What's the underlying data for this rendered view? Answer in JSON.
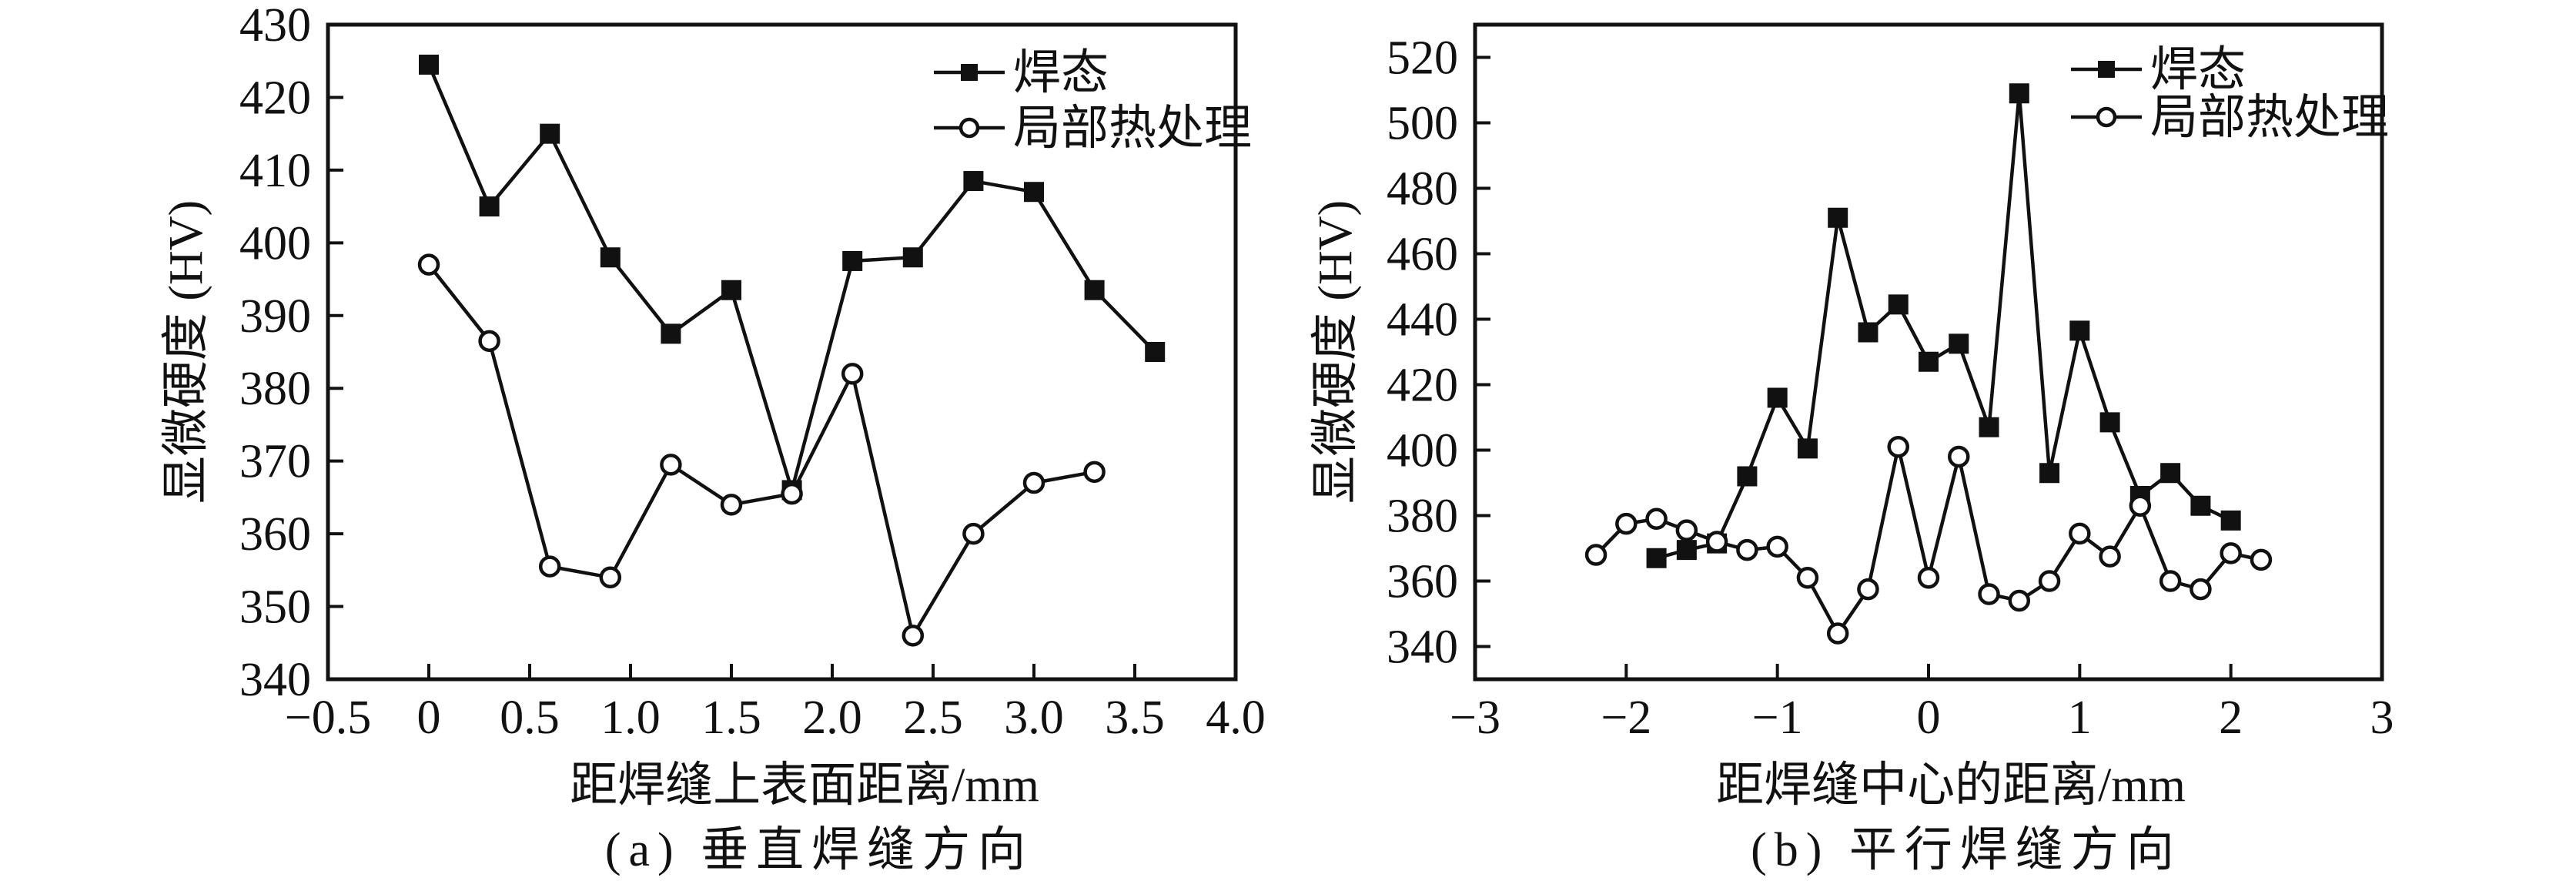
{
  "figure": {
    "background": "#ffffff",
    "ink_color": "#111111",
    "description_labels": {
      "panel_a_caption": "(a) 垂直焊缝方向",
      "panel_b_caption": "(b) 平行焊缝方向"
    }
  },
  "chart_data": [
    {
      "type": "line",
      "panel": "a",
      "title": "(a) 垂直焊缝方向",
      "xlabel": "距焊缝上表面距离/mm",
      "ylabel": "显微硬度 (HV)",
      "xlim": [
        -0.5,
        4.0
      ],
      "ylim": [
        340,
        430
      ],
      "grid": false,
      "legend_position": "top-right-inside",
      "xticks": [
        -0.5,
        0,
        0.5,
        1.0,
        1.5,
        2.0,
        2.5,
        3.0,
        3.5,
        4.0
      ],
      "xtick_labels": [
        "−0.5",
        "0",
        "0.5",
        "1.0",
        "1.5",
        "2.0",
        "2.5",
        "3.0",
        "3.5",
        "4.0"
      ],
      "yticks": [
        340,
        350,
        360,
        370,
        380,
        390,
        400,
        410,
        420,
        430
      ],
      "ytick_labels": [
        "340",
        "350",
        "360",
        "370",
        "380",
        "390",
        "400",
        "410",
        "420",
        "430"
      ],
      "series": [
        {
          "id": "as-welded",
          "name": "焊态",
          "marker": "filled-square",
          "x": [
            0,
            0.3,
            0.6,
            0.9,
            1.2,
            1.5,
            1.8,
            2.1,
            2.4,
            2.7,
            3.0,
            3.3,
            3.6
          ],
          "y": [
            424.5,
            405,
            415,
            398,
            387.5,
            393.5,
            366,
            397.5,
            398,
            408.5,
            407,
            393.5,
            385
          ]
        },
        {
          "id": "local-heat-treatment",
          "name": "局部热处理",
          "marker": "open-circle",
          "x": [
            0,
            0.3,
            0.6,
            0.9,
            1.2,
            1.5,
            1.8,
            2.1,
            2.4,
            2.7,
            3.0,
            3.3
          ],
          "y": [
            397,
            386.5,
            355.5,
            354,
            369.5,
            364,
            365.5,
            382,
            346,
            360,
            367,
            368.5
          ]
        }
      ]
    },
    {
      "type": "line",
      "panel": "b",
      "title": "(b) 平行焊缝方向",
      "xlabel": "距焊缝中心的距离/mm",
      "ylabel": "显微硬度 (HV)",
      "xlim": [
        -3,
        3
      ],
      "ylim": [
        330,
        530
      ],
      "grid": false,
      "legend_position": "top-right-inside",
      "xticks": [
        -3,
        -2,
        -1,
        0,
        1,
        2,
        3
      ],
      "xtick_labels": [
        "−3",
        "−2",
        "−1",
        "0",
        "1",
        "2",
        "3"
      ],
      "yticks": [
        340,
        360,
        380,
        400,
        420,
        440,
        460,
        480,
        500,
        520
      ],
      "ytick_labels": [
        "340",
        "360",
        "380",
        "400",
        "420",
        "440",
        "460",
        "480",
        "500",
        "520"
      ],
      "series": [
        {
          "id": "as-welded",
          "name": "焊态",
          "marker": "filled-square",
          "x": [
            -1.8,
            -1.6,
            -1.4,
            -1.2,
            -1.0,
            -0.8,
            -0.6,
            -0.4,
            -0.2,
            0,
            0.2,
            0.4,
            0.6,
            0.8,
            1.0,
            1.2,
            1.4,
            1.6,
            1.8,
            2.0
          ],
          "y": [
            367,
            369.5,
            371.5,
            392,
            416,
            400.5,
            471,
            436,
            444.5,
            427,
            432.5,
            407,
            509,
            393,
            436.5,
            408.5,
            386,
            393,
            383,
            378.5
          ]
        },
        {
          "id": "local-heat-treatment",
          "name": "局部热处理",
          "marker": "open-circle",
          "x": [
            -2.2,
            -2.0,
            -1.8,
            -1.6,
            -1.4,
            -1.2,
            -1.0,
            -0.8,
            -0.6,
            -0.4,
            -0.2,
            0,
            0.2,
            0.4,
            0.6,
            0.8,
            1.0,
            1.2,
            1.4,
            1.6,
            1.8,
            2.0,
            2.2
          ],
          "y": [
            368,
            377.5,
            379,
            375.5,
            372,
            369.5,
            370.5,
            361,
            344,
            357.5,
            401,
            361,
            398,
            356,
            354,
            360,
            374.5,
            367.5,
            383,
            360,
            357.5,
            368.5,
            366.5
          ]
        }
      ]
    }
  ]
}
